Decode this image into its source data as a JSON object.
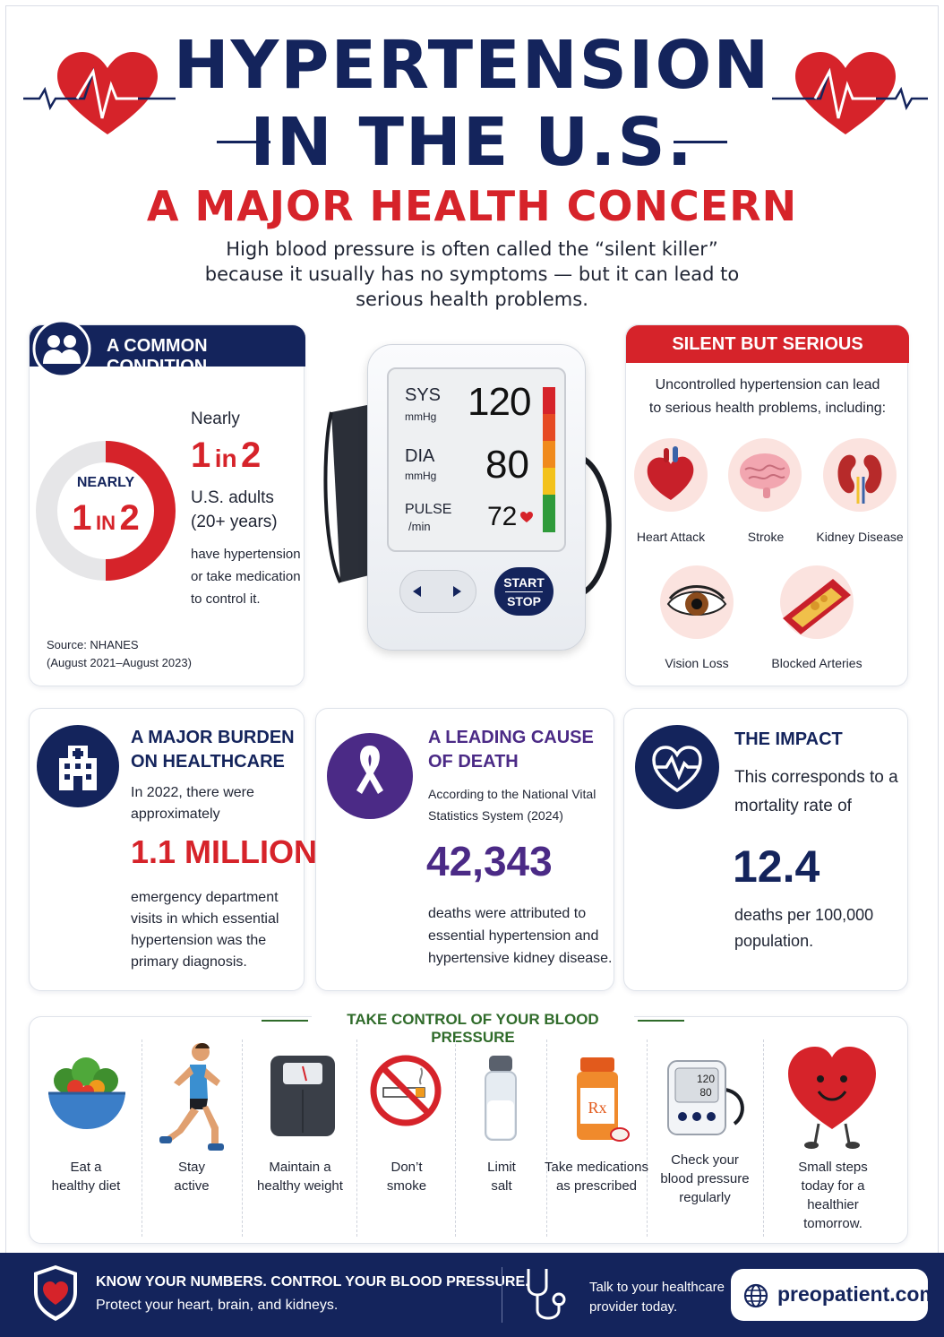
{
  "header": {
    "title_line1": "HYPERTENSION",
    "title_line2": "IN THE U.S.",
    "subtitle": "A MAJOR HEALTH CONCERN",
    "intro": "High blood pressure is often called the “silent killer” because it usually has no symptoms — but it can lead to serious health problems."
  },
  "common_condition": {
    "heading": "A COMMON CONDITION",
    "donut_label_top": "NEARLY",
    "donut_label_main_a": "1",
    "donut_label_main_b": "IN",
    "donut_label_main_c": "2",
    "donut_fraction": 0.5,
    "nearly": "Nearly",
    "big_a": "1",
    "big_b": "in",
    "big_c": "2",
    "line1": "U.S. adults",
    "line2": "(20+ years)",
    "line3": "have hypertension",
    "line4": "or take medication",
    "line5": "to control it.",
    "source1": "Source: NHANES",
    "source2": "(August 2021–August 2023)"
  },
  "monitor": {
    "sys_label": "SYS",
    "sys_unit": "mmHg",
    "sys_value": "120",
    "dia_label": "DIA",
    "dia_unit": "mmHg",
    "dia_value": "80",
    "pulse_label": "PULSE",
    "pulse_unit": "/min",
    "pulse_value": "72",
    "start": "START",
    "stop": "STOP"
  },
  "silent": {
    "heading": "SILENT BUT SERIOUS",
    "desc1": "Uncontrolled hypertension can lead",
    "desc2": "to serious health problems, including:",
    "items": [
      "Heart Attack",
      "Stroke",
      "Kidney Disease",
      "Vision Loss",
      "Blocked Arteries"
    ]
  },
  "burden": {
    "heading1": "A MAJOR BURDEN",
    "heading2": "ON HEALTHCARE",
    "pre1": "In 2022, there were",
    "pre2": "approximately",
    "big": "1.1 MILLION",
    "post1": "emergency department",
    "post2": "visits in which essential",
    "post3": "hypertension was the",
    "post4": "primary diagnosis."
  },
  "death": {
    "heading1": "A LEADING CAUSE",
    "heading2": "OF DEATH",
    "pre1": "According to the National Vital",
    "pre2": "Statistics System (2024)",
    "big": "42,343",
    "post1": "deaths were attributed to",
    "post2": "essential hypertension and",
    "post3": "hypertensive kidney disease."
  },
  "impact": {
    "heading": "THE IMPACT",
    "pre1": "This corresponds to a",
    "pre2": "mortality rate of",
    "big": "12.4",
    "post1": "deaths per 100,000",
    "post2": "population."
  },
  "control": {
    "heading": "TAKE CONTROL OF YOUR BLOOD PRESSURE",
    "scale_reading_top": "120",
    "scale_reading_bottom": "80",
    "rx_label": "Rx",
    "tips": [
      [
        "Eat a",
        "healthy diet"
      ],
      [
        "Stay",
        "active"
      ],
      [
        "Maintain a",
        "healthy weight"
      ],
      [
        "Don’t",
        "smoke"
      ],
      [
        "Limit",
        "salt"
      ],
      [
        "Take medications",
        "as prescribed"
      ],
      [
        "Check your",
        "blood pressure",
        "regularly"
      ],
      [
        "Small steps",
        "today for a",
        "healthier",
        "tomorrow."
      ]
    ]
  },
  "footer": {
    "line1": "KNOW YOUR NUMBERS. CONTROL YOUR BLOOD PRESSURE.",
    "line2": "Protect your heart, brain, and kidneys.",
    "talk1": "Talk to your healthcare",
    "talk2": "provider today.",
    "site": "preopatient.com"
  },
  "colors": {
    "navy": "#14245c",
    "red": "#d6232a",
    "purple": "#4b2a86",
    "green": "#2f6b2a"
  }
}
